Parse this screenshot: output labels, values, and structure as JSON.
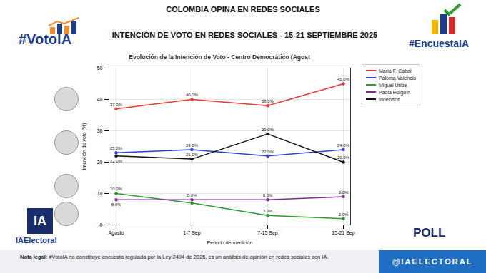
{
  "header": {
    "top_title": "COLOMBIA OPINA EN REDES SOCIALES",
    "title": "INTENCIÓN DE VOTO EN REDES SOCIALES - 15-21 SEPTIEMBRE 2025",
    "left_tag": "#VotoIA",
    "right_tag": "#EncuestaIA"
  },
  "chart_data": {
    "type": "line",
    "title": "Evolución de la Intención de Voto - Centro Democrático (Agost",
    "x_label": "Periodo de medición",
    "y_label": "Intención de voto (%)",
    "categories": [
      "Agosto",
      "1-7 Sep",
      "7-15 Sep",
      "15-21 Sep"
    ],
    "series": [
      {
        "name": "María F. Cabal",
        "color": "#e53935",
        "values": [
          37,
          40,
          38,
          45
        ],
        "value_labels": [
          "37.0%",
          "40.0%",
          "38.0%",
          "45.0%"
        ]
      },
      {
        "name": "Paloma Valencia",
        "color": "#2b3fd6",
        "values": [
          23,
          24,
          22,
          24
        ],
        "value_labels": [
          "23.0%",
          "24.0%",
          "22.0%",
          "24.0%"
        ]
      },
      {
        "name": "Miguel Uribe",
        "color": "#2e9a2e",
        "values": [
          10,
          7,
          3,
          2
        ],
        "value_labels": [
          "10.0%",
          null,
          "3.0%",
          "2.0%"
        ]
      },
      {
        "name": "Paola Holguín",
        "color": "#7b2d8e",
        "values": [
          8,
          8,
          8,
          9
        ],
        "value_labels": [
          "8.0%",
          "8.0%",
          "8.0%",
          "9.0%"
        ]
      },
      {
        "name": "Indecisos",
        "color": "#111111",
        "values": [
          22,
          21,
          29,
          20
        ],
        "value_labels": [
          "22.0%",
          "21.0%",
          "29.0%",
          "20.0%"
        ]
      }
    ],
    "marker": "circle",
    "ylim": [
      0,
      50
    ],
    "yticks": [
      0,
      10,
      20,
      30,
      40,
      50
    ],
    "grid": true,
    "data_labels": true,
    "legend": "upper right"
  },
  "branding": {
    "logo": "IA",
    "logo_name": "IAElectoral",
    "poll": "POLL",
    "handle": "@IAELECTORAL"
  },
  "footer": {
    "label": "Nota legal:",
    "text": "#VotoIA no constituye encuesta regulada por la Ley 2494 de 2025, es un análisis de opinión en redes sociales con IA."
  }
}
